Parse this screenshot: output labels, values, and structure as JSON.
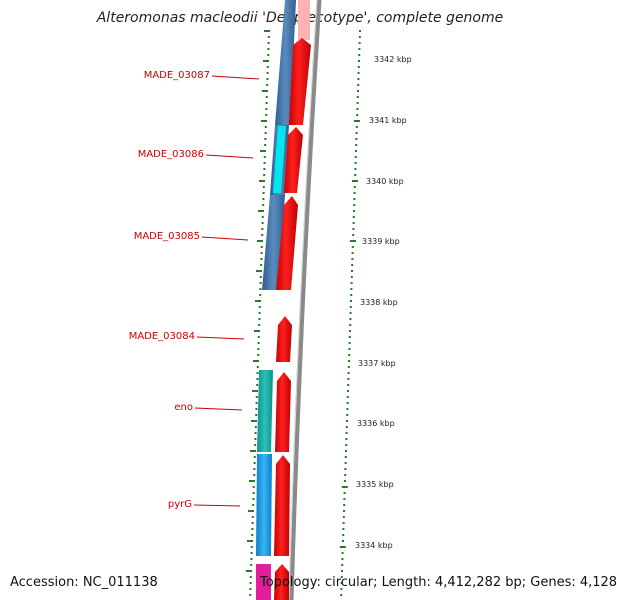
{
  "title": "Alteromonas macleodii 'Deep ecotype', complete genome",
  "footer": {
    "accession": "Accession: NC_011138",
    "summary": "Topology: circular; Length: 4,412,282 bp; Genes: 4,128"
  },
  "ruler": [
    {
      "label": "3342 kbp"
    },
    {
      "label": "3341 kbp"
    },
    {
      "label": "3340 kbp"
    },
    {
      "label": "3339 kbp"
    },
    {
      "label": "3338 kbp"
    },
    {
      "label": "3337 kbp"
    },
    {
      "label": "3336 kbp"
    },
    {
      "label": "3335 kbp"
    },
    {
      "label": "3334 kbp"
    }
  ],
  "gene_labels": [
    {
      "label": "MADE_03087"
    },
    {
      "label": "MADE_03086"
    },
    {
      "label": "MADE_03085"
    },
    {
      "label": "MADE_03084"
    },
    {
      "label": "eno"
    },
    {
      "label": "pyrG"
    }
  ],
  "colors": {
    "cds": "#ff0000",
    "label": "#cc0000",
    "tick": "#2a7a2a",
    "backbone": "#888888",
    "blue_feature": "#4a78a8",
    "cyan_feature": "#00e5ee",
    "teal_feature": "#20b2aa",
    "sky_feature": "#1ea0e6",
    "magenta_feature": "#e0209a"
  }
}
